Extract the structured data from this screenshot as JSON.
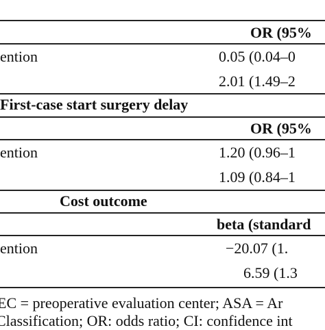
{
  "table": {
    "header": {
      "column": "OR (95%"
    },
    "rows": [
      {
        "label": "ention",
        "value": "0.05 (0.04–0"
      },
      {
        "label": "",
        "value": "2.01 (1.49–2"
      }
    ],
    "sections": [
      {
        "title": "First-case start surgery delay",
        "column": "OR (95%",
        "rows": [
          {
            "label": "ention",
            "value": "1.20 (0.96–1"
          },
          {
            "label": "",
            "value": "1.09 (0.84–1"
          }
        ]
      },
      {
        "title": "Cost outcome",
        "column": "beta (standard",
        "rows": [
          {
            "label": "ention",
            "value": "−20.07 (1."
          },
          {
            "label": "",
            "value": "6.59 (1.3"
          }
        ]
      }
    ]
  },
  "footnote": [
    "EC = preoperative evaluation center; ASA = Ar",
    "Classification; OR: odds ratio; CI: confidence int"
  ]
}
